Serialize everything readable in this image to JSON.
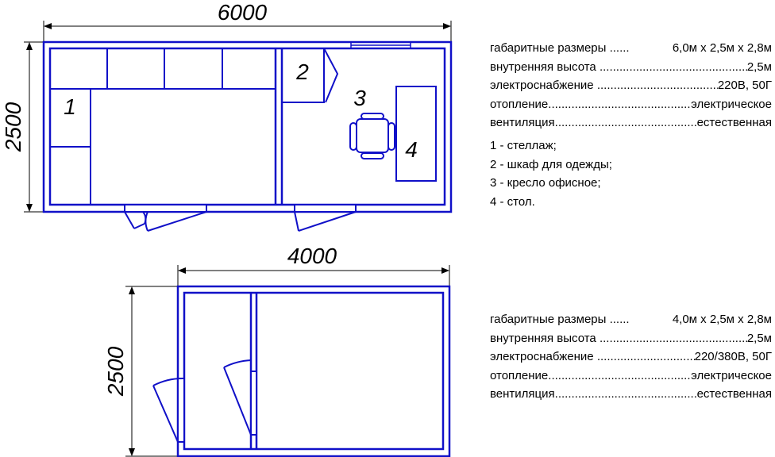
{
  "plan1": {
    "width_dim": "6000",
    "height_dim": "2500",
    "labels": [
      "1",
      "2",
      "3",
      "4"
    ],
    "specs": [
      {
        "name": "габаритные размеры",
        "value": "6,0м х 2,5м х 2,8м",
        "lead": "......"
      },
      {
        "name": "внутренняя высота",
        "value": "2,5м"
      },
      {
        "name": "электроснабжение",
        "value": "220В, 50Г"
      },
      {
        "name": "отопление",
        "value": "электрическое"
      },
      {
        "name": "вентиляция",
        "value": "естественная"
      }
    ],
    "legend": [
      "1 - стеллаж;",
      "2 - шкаф для одежды;",
      "3 - кресло офисное;",
      "4 - стол."
    ]
  },
  "plan2": {
    "width_dim": "4000",
    "height_dim": "2500",
    "specs": [
      {
        "name": "габаритные размеры",
        "value": "4,0м х 2,5м х 2,8м",
        "lead": "......"
      },
      {
        "name": "внутренняя высота",
        "value": "2,5м"
      },
      {
        "name": "электроснабжение",
        "value": "220/380В, 50Г"
      },
      {
        "name": "отопление",
        "value": "электрическое"
      },
      {
        "name": "вентиляция",
        "value": "естественная"
      }
    ]
  },
  "colors": {
    "wall": "#1010c8",
    "dim": "#000000"
  }
}
